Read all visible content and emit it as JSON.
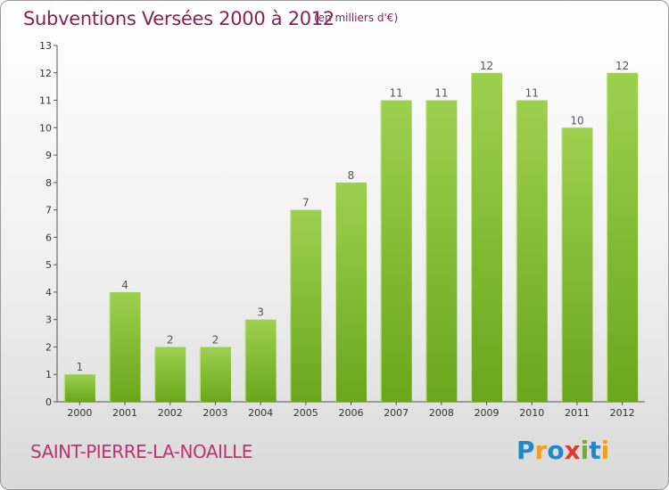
{
  "title": "Subventions Versées 2000 à 2012",
  "subtitle": "(en milliers d'€)",
  "commune": "SAINT-PIERRE-LA-NOAILLE",
  "logo": {
    "text": "Proxiti",
    "letters": [
      {
        "ch": "P",
        "color": "#1e88c8"
      },
      {
        "ch": "r",
        "color": "#f0a020"
      },
      {
        "ch": "o",
        "color": "#1e88c8"
      },
      {
        "ch": "x",
        "color": "#e03a2a"
      },
      {
        "ch": "i",
        "color": "#6cb02c"
      },
      {
        "ch": "t",
        "color": "#1e88c8"
      },
      {
        "ch": "i",
        "color": "#f0a020"
      }
    ]
  },
  "colors": {
    "bar_top": "#9ed04f",
    "bar_bottom": "#6aa61c",
    "title": "#8c1f52",
    "commune": "#c0326e"
  },
  "chart_data": {
    "type": "bar",
    "categories": [
      "2000",
      "2001",
      "2002",
      "2003",
      "2004",
      "2005",
      "2006",
      "2007",
      "2008",
      "2009",
      "2010",
      "2011",
      "2012"
    ],
    "values": [
      1,
      4,
      2,
      2,
      3,
      7,
      8,
      11,
      11,
      12,
      11,
      10,
      12
    ],
    "ylim": [
      0,
      13
    ],
    "yticks": [
      0,
      1,
      2,
      3,
      4,
      5,
      6,
      7,
      8,
      9,
      10,
      11,
      12,
      13
    ],
    "grid": false,
    "title": "Subventions Versées 2000 à 2012",
    "subtitle": "(en milliers d'€)"
  }
}
